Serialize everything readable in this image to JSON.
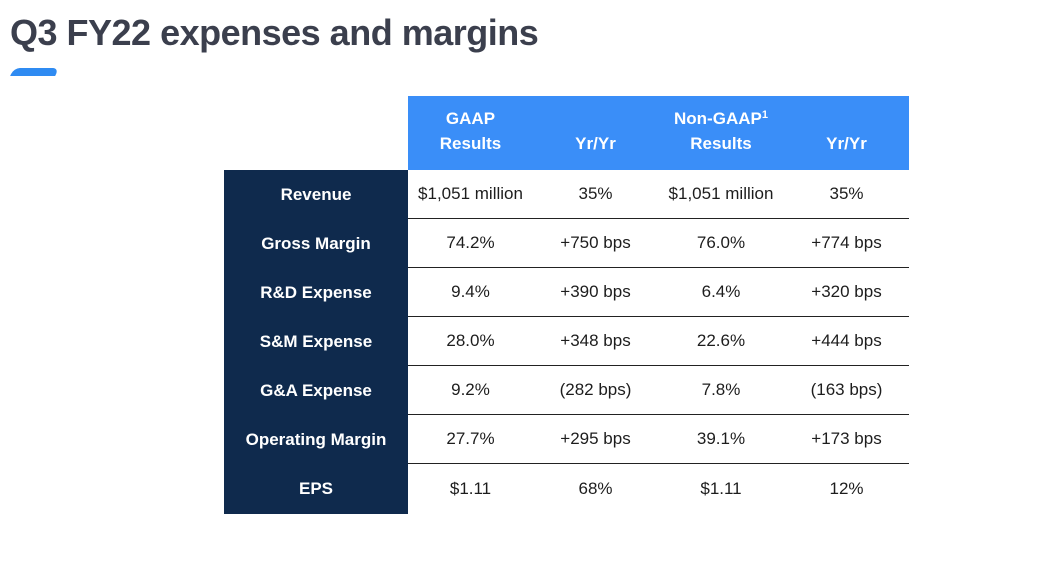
{
  "title": "Q3 FY22 expenses and margins",
  "colors": {
    "header_bg": "#3a8ef8",
    "label_bg": "#0f2a4d",
    "accent": "#2f8bf2",
    "title": "#3b3f4d"
  },
  "table": {
    "headers": [
      {
        "line1": "GAAP",
        "line2": "Results",
        "sup": ""
      },
      {
        "line1": "",
        "line2": "Yr/Yr",
        "sup": ""
      },
      {
        "line1": "Non-GAAP",
        "line2": "Results",
        "sup": "1"
      },
      {
        "line1": "",
        "line2": "Yr/Yr",
        "sup": ""
      }
    ],
    "rows": [
      {
        "label": "Revenue",
        "cells": [
          "$1,051 million",
          "35%",
          "$1,051 million",
          "35%"
        ]
      },
      {
        "label": "Gross Margin",
        "cells": [
          "74.2%",
          "+750 bps",
          "76.0%",
          "+774 bps"
        ]
      },
      {
        "label": "R&D Expense",
        "cells": [
          "9.4%",
          "+390 bps",
          "6.4%",
          "+320 bps"
        ]
      },
      {
        "label": "S&M Expense",
        "cells": [
          "28.0%",
          "+348 bps",
          "22.6%",
          "+444 bps"
        ]
      },
      {
        "label": "G&A Expense",
        "cells": [
          "9.2%",
          "(282 bps)",
          "7.8%",
          "(163 bps)"
        ]
      },
      {
        "label": "Operating Margin",
        "cells": [
          "27.7%",
          "+295 bps",
          "39.1%",
          "+173 bps"
        ]
      },
      {
        "label": "EPS",
        "cells": [
          "$1.11",
          "68%",
          "$1.11",
          "12%"
        ]
      }
    ]
  }
}
